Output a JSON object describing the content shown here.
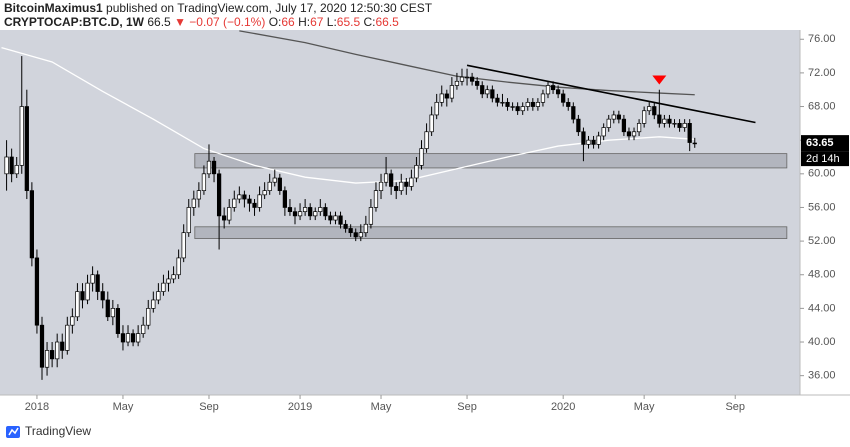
{
  "chart_data": {
    "type": "candlestick",
    "header": {
      "author": "BitcoinMaximus1",
      "published": "published on TradingView.com, July 17, 2020 12:50:30 CEST",
      "symbol": "CRYPTOCAP:BTC.D, 1W",
      "change": "−0.07 (−0.1%)",
      "ohlc_labels": [
        "O:",
        "H:",
        "L:",
        "C:"
      ]
    },
    "footer": "TradingView",
    "countdown": "2d 14h",
    "xlim": [
      -1.3,
      156.8
    ],
    "ylim": [
      33.7,
      77.1
    ],
    "xticks": [
      {
        "value": 6,
        "label": "2018"
      },
      {
        "value": 23,
        "label": "May"
      },
      {
        "value": 40,
        "label": "Sep"
      },
      {
        "value": 58,
        "label": "2019"
      },
      {
        "value": 74,
        "label": "May"
      },
      {
        "value": 91,
        "label": "Sep"
      },
      {
        "value": 110,
        "label": "2020"
      },
      {
        "value": 126,
        "label": "May"
      },
      {
        "value": 144,
        "label": "Sep"
      }
    ],
    "yticks": [
      {
        "value": 36,
        "label": "36.00"
      },
      {
        "value": 40,
        "label": "40.00"
      },
      {
        "value": 44,
        "label": "44.00"
      },
      {
        "value": 48,
        "label": "48.00"
      },
      {
        "value": 52,
        "label": "52.00"
      },
      {
        "value": 56,
        "label": "56.00"
      },
      {
        "value": 60,
        "label": "60.00"
      },
      {
        "value": 64,
        "label": "64.00"
      },
      {
        "value": 68,
        "label": "68.00"
      },
      {
        "value": 72,
        "label": "72.00"
      },
      {
        "value": 76,
        "label": "76.00"
      }
    ],
    "up_color": "#ffffff",
    "down_color": "#000000",
    "bg_color": "#d1d4dc",
    "candles": [
      [
        60,
        64,
        58,
        62
      ],
      [
        62,
        63,
        59,
        60
      ],
      [
        60,
        62,
        59.5,
        61
      ],
      [
        61,
        74,
        60,
        68
      ],
      [
        68,
        70,
        57,
        58
      ],
      [
        58,
        59,
        49,
        50
      ],
      [
        50,
        51,
        41,
        42
      ],
      [
        42,
        43,
        35.5,
        37
      ],
      [
        37,
        40,
        36,
        39
      ],
      [
        39,
        40,
        37,
        38
      ],
      [
        38,
        41,
        37,
        40
      ],
      [
        40,
        41,
        38,
        39
      ],
      [
        39,
        43,
        38.5,
        42
      ],
      [
        42,
        44,
        41,
        43
      ],
      [
        43,
        47,
        42.5,
        46
      ],
      [
        46,
        47,
        44,
        45
      ],
      [
        45,
        48,
        44.5,
        47
      ],
      [
        47,
        49,
        46,
        48
      ],
      [
        48,
        48.5,
        45,
        46
      ],
      [
        46,
        47,
        44,
        45
      ],
      [
        45,
        46,
        42.5,
        43
      ],
      [
        43,
        45,
        42,
        44
      ],
      [
        44,
        44.5,
        40.5,
        41
      ],
      [
        41,
        42,
        39,
        40
      ],
      [
        40,
        42,
        39.5,
        41
      ],
      [
        41,
        41.5,
        39.5,
        40
      ],
      [
        40,
        42,
        39.5,
        41
      ],
      [
        41,
        43,
        40.5,
        42
      ],
      [
        42,
        45,
        41.5,
        44
      ],
      [
        44,
        46,
        43.5,
        45
      ],
      [
        45,
        47,
        44.5,
        46
      ],
      [
        46,
        48,
        45.5,
        47
      ],
      [
        47,
        48.5,
        46,
        47.5
      ],
      [
        47.5,
        49,
        47,
        48
      ],
      [
        48,
        51,
        47.5,
        50
      ],
      [
        50,
        54,
        49.5,
        53
      ],
      [
        53,
        57,
        52.5,
        56
      ],
      [
        56,
        58,
        55,
        57
      ],
      [
        57,
        59,
        56,
        58
      ],
      [
        58,
        61,
        57.5,
        60
      ],
      [
        60,
        63.5,
        59.5,
        61.5
      ],
      [
        61.5,
        62,
        59,
        60
      ],
      [
        60,
        60.5,
        51,
        55
      ],
      [
        55,
        56,
        53.5,
        54.5
      ],
      [
        54.5,
        57,
        54,
        56
      ],
      [
        56,
        58,
        55.5,
        57
      ],
      [
        57,
        58.5,
        56.5,
        57.5
      ],
      [
        57.5,
        58,
        56,
        57
      ],
      [
        57,
        57.5,
        55.5,
        56.5
      ],
      [
        56.5,
        57,
        55,
        56
      ],
      [
        56,
        58.5,
        55.5,
        57.5
      ],
      [
        57.5,
        59,
        57,
        58
      ],
      [
        58,
        60,
        57.5,
        59
      ],
      [
        59,
        60.5,
        58.5,
        59.5
      ],
      [
        59.5,
        60,
        57.5,
        58
      ],
      [
        58,
        58.5,
        55,
        56
      ],
      [
        56,
        57,
        55,
        55.5
      ],
      [
        55.5,
        56,
        54,
        55
      ],
      [
        55,
        56.5,
        54.5,
        55.5
      ],
      [
        55.5,
        57,
        55,
        56
      ],
      [
        56,
        56.5,
        54.5,
        55
      ],
      [
        55,
        56,
        54.5,
        55.5
      ],
      [
        55.5,
        57,
        55,
        56
      ],
      [
        56,
        56.5,
        54.5,
        55
      ],
      [
        55,
        55.5,
        54,
        54.5
      ],
      [
        54.5,
        55.5,
        54,
        55
      ],
      [
        55,
        55.5,
        53.5,
        54
      ],
      [
        54,
        54.5,
        53,
        53.5
      ],
      [
        53.5,
        54,
        52.5,
        53
      ],
      [
        53,
        53.5,
        52,
        52.5
      ],
      [
        52.5,
        54,
        52,
        53
      ],
      [
        53,
        55,
        52.5,
        54
      ],
      [
        54,
        57,
        53.5,
        56
      ],
      [
        56,
        59,
        55.5,
        58
      ],
      [
        58,
        60,
        57,
        59
      ],
      [
        59,
        62,
        58.5,
        60
      ],
      [
        60,
        60.5,
        57.5,
        58.5
      ],
      [
        58.5,
        59,
        57,
        58
      ],
      [
        58,
        60,
        57.5,
        59
      ],
      [
        59,
        59.5,
        57.5,
        58.5
      ],
      [
        58.5,
        60.5,
        58,
        59.5
      ],
      [
        59.5,
        62,
        59,
        61
      ],
      [
        61,
        64,
        60.5,
        63
      ],
      [
        63,
        66,
        62.5,
        65
      ],
      [
        65,
        68,
        64.5,
        67
      ],
      [
        67,
        69.5,
        66.5,
        68.5
      ],
      [
        68.5,
        70.5,
        68,
        69.5
      ],
      [
        69.5,
        70,
        68,
        69
      ],
      [
        69,
        71.5,
        68.5,
        70.5
      ],
      [
        70.5,
        72,
        70,
        71
      ],
      [
        71,
        72.5,
        70.5,
        71.5
      ],
      [
        71.5,
        72.5,
        70.5,
        71.5
      ],
      [
        71.5,
        72,
        70.5,
        71
      ],
      [
        71,
        71.5,
        70,
        70.5
      ],
      [
        70.5,
        71,
        69,
        69.5
      ],
      [
        69.5,
        70.5,
        69,
        70
      ],
      [
        70,
        70.5,
        68.5,
        69
      ],
      [
        69,
        69.5,
        68,
        68.5
      ],
      [
        68.5,
        69.5,
        68,
        68.5
      ],
      [
        68.5,
        69,
        67.5,
        68
      ],
      [
        68,
        68.5,
        67.5,
        68
      ],
      [
        68,
        68.5,
        67,
        67.5
      ],
      [
        67.5,
        68.5,
        67,
        68
      ],
      [
        68,
        69,
        67.5,
        68.5
      ],
      [
        68.5,
        69,
        67.5,
        68
      ],
      [
        68,
        69,
        67.5,
        68.5
      ],
      [
        68.5,
        70,
        68,
        69.5
      ],
      [
        69.5,
        71,
        69,
        70.5
      ],
      [
        70.5,
        71,
        69.5,
        70
      ],
      [
        70,
        70.5,
        69,
        69.5
      ],
      [
        69.5,
        70,
        68,
        68.5
      ],
      [
        68.5,
        69,
        67.5,
        68
      ],
      [
        68,
        68.5,
        66,
        66.5
      ],
      [
        66.5,
        67,
        64.5,
        65
      ],
      [
        65,
        65.5,
        61.5,
        63.5
      ],
      [
        63.5,
        64.5,
        63,
        64
      ],
      [
        64,
        64.5,
        63,
        63.5
      ],
      [
        63.5,
        65,
        63,
        64.5
      ],
      [
        64.5,
        66,
        64,
        65.5
      ],
      [
        65.5,
        67,
        65,
        66.5
      ],
      [
        66.5,
        67.5,
        66,
        67
      ],
      [
        67,
        67.5,
        66,
        66.5
      ],
      [
        66.5,
        67,
        64.5,
        65
      ],
      [
        65,
        65.5,
        64,
        64.5
      ],
      [
        64.5,
        65.5,
        64,
        65
      ],
      [
        65,
        66.5,
        64.5,
        66
      ],
      [
        66,
        68,
        65.5,
        67.5
      ],
      [
        67.5,
        68.5,
        67,
        68
      ],
      [
        68,
        68.5,
        66.5,
        67
      ],
      [
        67,
        70,
        65.5,
        66
      ],
      [
        66,
        67,
        65.5,
        66.5
      ],
      [
        66.5,
        67,
        65.5,
        66
      ],
      [
        66,
        66.5,
        65.5,
        66
      ],
      [
        66,
        66.5,
        65,
        65.5
      ],
      [
        65.5,
        66.5,
        65,
        66
      ],
      [
        66,
        66.5,
        62.7,
        63.72
      ],
      [
        63.66,
        64.28,
        63.09,
        63.65
      ]
    ],
    "lines": [
      {
        "color": "#ffffff",
        "x": [
          -1,
          9,
          19,
          29,
          39,
          49,
          59,
          69,
          79,
          89,
          99,
          109,
          119,
          129,
          136
        ],
        "values": [
          75,
          73.3,
          69.8,
          66.5,
          63,
          61,
          59.6,
          58.9,
          59.2,
          60.6,
          62,
          63.3,
          64,
          64.4,
          64.1
        ]
      },
      {
        "color": "#555555",
        "x": [
          46,
          59,
          69,
          79,
          89,
          99,
          109,
          119,
          129,
          136
        ],
        "values": [
          77,
          75.6,
          74.2,
          72.9,
          71.6,
          70.9,
          70.3,
          69.9,
          69.6,
          69.4
        ]
      }
    ],
    "trendline": {
      "color": "#000000",
      "x": [
        91,
        148
      ],
      "values": [
        72.9,
        66.1
      ]
    },
    "zones": [
      {
        "x": [
          37.2,
          154.2
        ],
        "values": [
          60.7,
          62.4
        ]
      },
      {
        "x": [
          37.2,
          154.2
        ],
        "values": [
          52.3,
          53.7
        ]
      }
    ],
    "marker": {
      "color": "#f00",
      "x": 129,
      "value": 71.1
    }
  }
}
